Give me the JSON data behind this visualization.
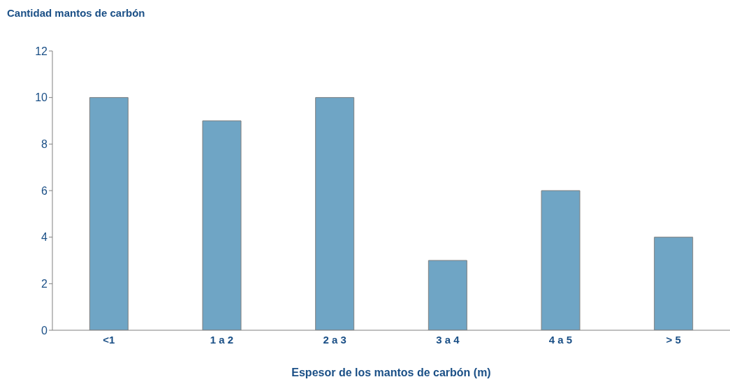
{
  "chart_data": {
    "type": "bar",
    "title": "Cantidad mantos de carbón",
    "xlabel": "Espesor de los mantos de carbón (m)",
    "categories": [
      "<1",
      "1 a 2",
      "2 a 3",
      "3 a 4",
      "4 a 5",
      "> 5"
    ],
    "values": [
      10,
      9,
      10,
      3,
      6,
      4
    ],
    "color": "#6fa5c5",
    "ylim": [
      0,
      12
    ],
    "yticks": [
      0,
      2,
      4,
      6,
      8,
      10,
      12
    ]
  }
}
